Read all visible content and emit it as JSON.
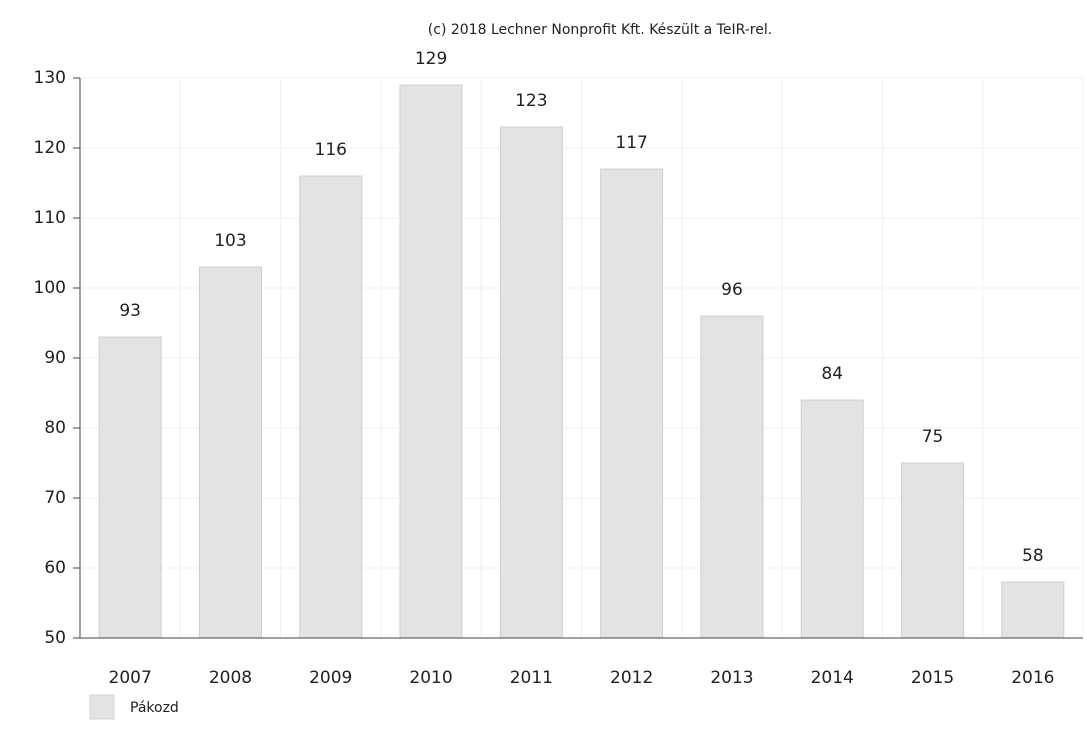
{
  "chart_data": {
    "type": "bar",
    "title": "(c) 2018 Lechner Nonprofit Kft. Készült a TeIR-rel.",
    "categories": [
      "2007",
      "2008",
      "2009",
      "2010",
      "2011",
      "2012",
      "2013",
      "2014",
      "2015",
      "2016"
    ],
    "series": [
      {
        "name": "Pákozd",
        "color": "#e3e3e3",
        "values": [
          93,
          103,
          116,
          129,
          123,
          117,
          96,
          84,
          75,
          58
        ]
      }
    ],
    "ylim": [
      50,
      130
    ],
    "yticks": [
      50,
      60,
      70,
      80,
      90,
      100,
      110,
      120,
      130
    ],
    "grid": true
  }
}
